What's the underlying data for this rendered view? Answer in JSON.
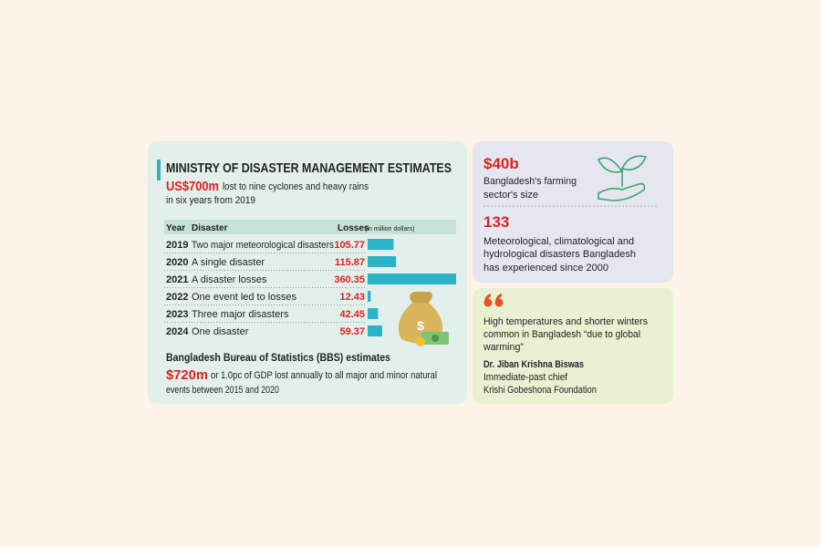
{
  "ministry": {
    "title": "MINISTRY OF DISASTER MANAGEMENT ESTIMATES",
    "headline_value": "US$700m",
    "headline_lines": [
      "lost to nine cyclones and heavy rains",
      "in six years from 2019"
    ]
  },
  "table": {
    "columns": [
      "Year",
      "Disaster",
      "Losses"
    ],
    "unit_note": "(in million dollars)",
    "rows": [
      {
        "year": "2019",
        "disaster": "Two major meteorological disasters",
        "loss": 105.77
      },
      {
        "year": "2020",
        "disaster": "A single disaster",
        "loss": 115.87
      },
      {
        "year": "2021",
        "disaster": "A disaster losses",
        "loss": 360.35
      },
      {
        "year": "2022",
        "disaster": "One event led to losses",
        "loss": 12.43
      },
      {
        "year": "2023",
        "disaster": "Three major disasters",
        "loss": 42.45
      },
      {
        "year": "2024",
        "disaster": "One disaster",
        "loss": 59.37
      }
    ]
  },
  "bbs": {
    "title": "Bangladesh Bureau of Statistics (BBS) estimates",
    "value": "$720m",
    "lines": [
      "or 1.0pc of GDP lost annually to all major and minor natural",
      "events between 2015 and 2020"
    ]
  },
  "farming": {
    "value": "$40b",
    "lines": [
      "Bangladesh's farming",
      "sector's size"
    ]
  },
  "disasters": {
    "value": "133",
    "lines": [
      "Meteorological, climatological and",
      "hydrological disasters Bangladesh",
      "has experienced since 2000"
    ]
  },
  "quote": {
    "lines": [
      "High temperatures and shorter winters",
      "common in Bangladesh “due to global",
      "warming”"
    ],
    "name": "Dr. Jiban Krishna Biswas",
    "role_lines": [
      "Immediate-past chief",
      "Krishi Gobeshona Foundation"
    ]
  }
}
